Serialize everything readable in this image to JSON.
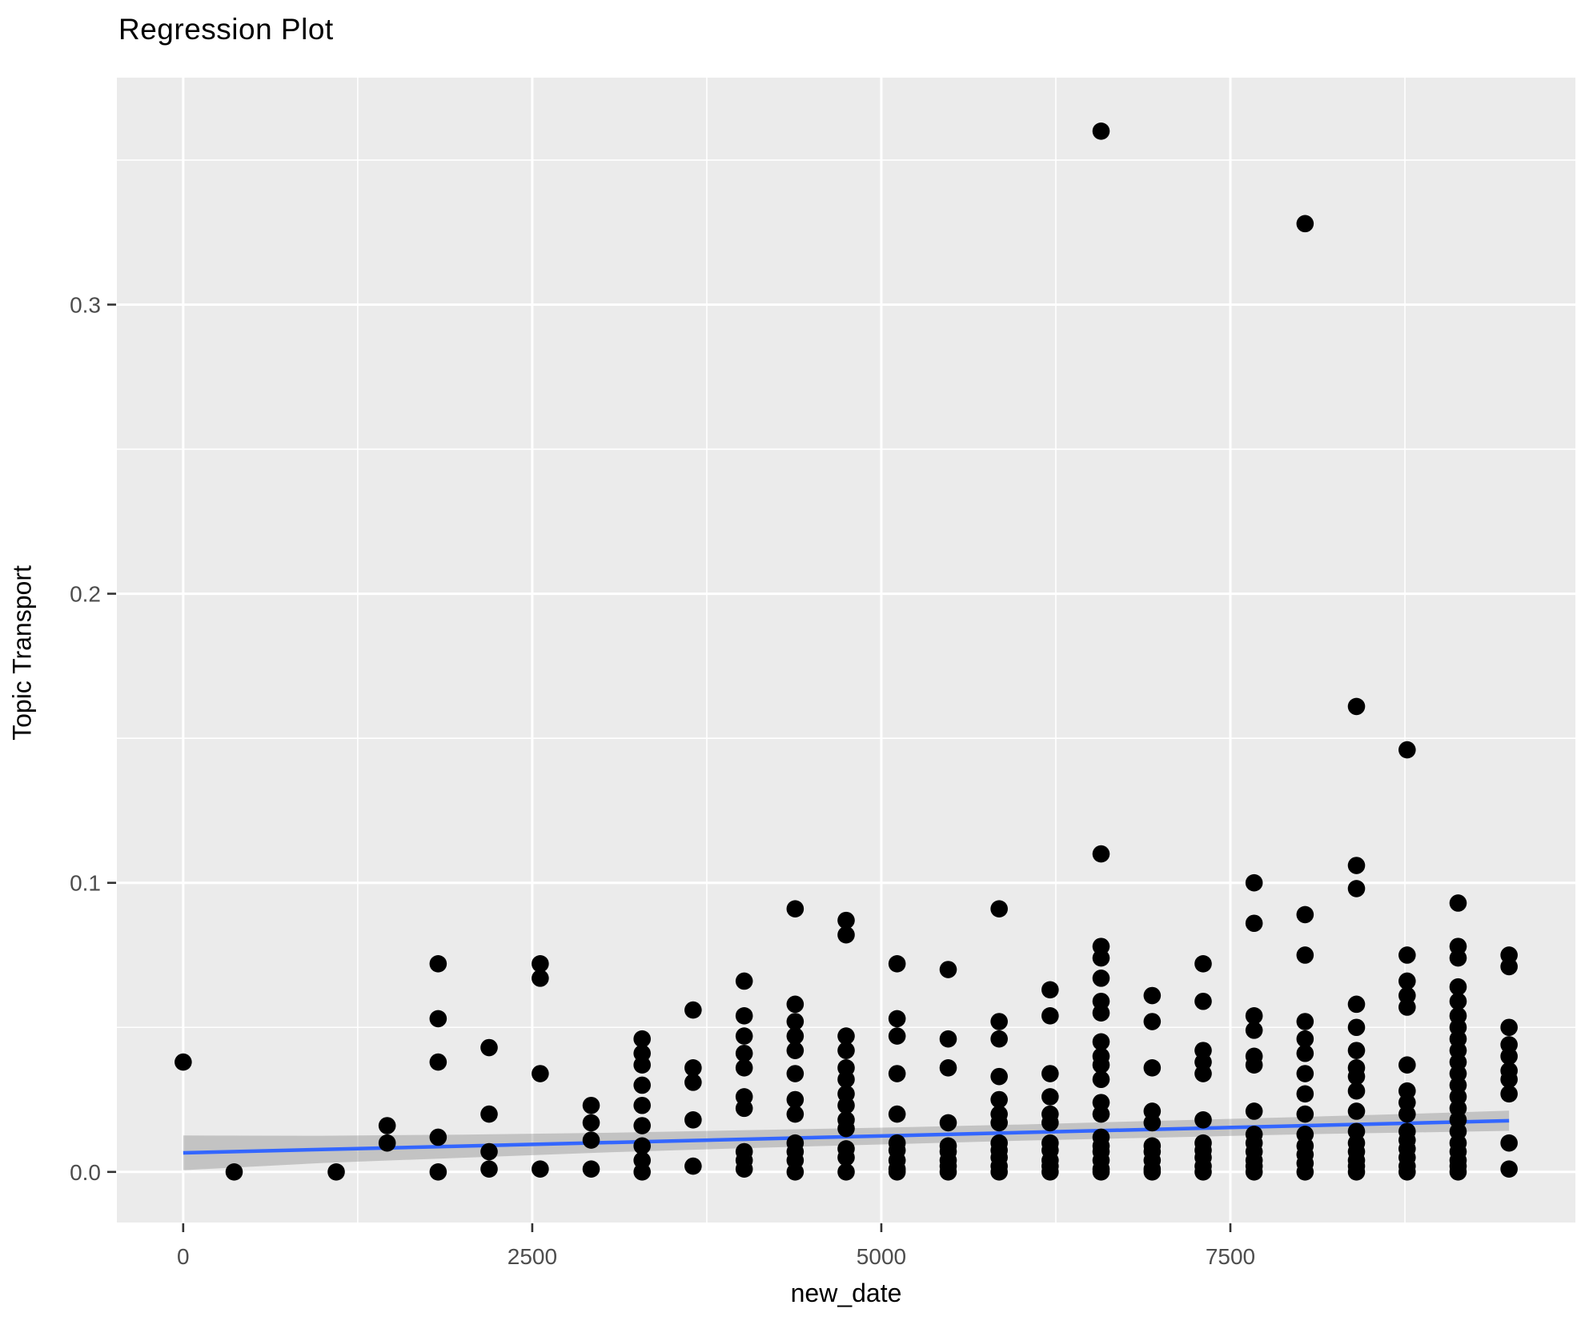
{
  "title": "Regression Plot",
  "chart_data": {
    "type": "scatter",
    "title": "Regression Plot",
    "xlabel": "new_date",
    "ylabel": "Topic Transport",
    "xlim": [
      -475,
      9971
    ],
    "ylim": [
      -0.0175,
      0.3785
    ],
    "grid": true,
    "legend_position": "none",
    "x_tick_values": [
      0,
      2500,
      5000,
      7500
    ],
    "x_tick_labels": [
      "0",
      "2500",
      "5000",
      "7500"
    ],
    "y_tick_values": [
      0.0,
      0.1,
      0.2,
      0.3
    ],
    "y_tick_labels": [
      "0.0",
      "0.1",
      "0.2",
      "0.3"
    ],
    "x_minor_gridlines": [
      1250,
      3750,
      6250,
      8750
    ],
    "y_minor_gridlines": [
      0.05,
      0.15,
      0.25,
      0.35
    ],
    "point_columns": [
      {
        "x": 0,
        "values": [
          0.038
        ]
      },
      {
        "x": 365,
        "values": [
          0.0
        ]
      },
      {
        "x": 1096,
        "values": [
          0.0
        ]
      },
      {
        "x": 1461,
        "values": [
          0.016,
          0.01
        ]
      },
      {
        "x": 1826,
        "values": [
          0.072,
          0.053,
          0.038,
          0.012,
          0.0
        ]
      },
      {
        "x": 2191,
        "values": [
          0.043,
          0.02,
          0.007,
          0.001
        ]
      },
      {
        "x": 2557,
        "values": [
          0.072,
          0.067,
          0.034,
          0.001
        ]
      },
      {
        "x": 2922,
        "values": [
          0.023,
          0.017,
          0.011,
          0.001
        ]
      },
      {
        "x": 3287,
        "values": [
          0.046,
          0.041,
          0.037,
          0.03,
          0.023,
          0.016,
          0.009,
          0.004,
          0.0
        ]
      },
      {
        "x": 3652,
        "values": [
          0.056,
          0.036,
          0.031,
          0.018,
          0.002
        ]
      },
      {
        "x": 4018,
        "values": [
          0.066,
          0.054,
          0.047,
          0.041,
          0.036,
          0.026,
          0.022,
          0.007,
          0.004,
          0.001
        ]
      },
      {
        "x": 4383,
        "values": [
          0.091,
          0.058,
          0.052,
          0.047,
          0.042,
          0.034,
          0.025,
          0.02,
          0.01,
          0.007,
          0.004,
          0.0
        ]
      },
      {
        "x": 4748,
        "values": [
          0.087,
          0.082,
          0.047,
          0.042,
          0.036,
          0.032,
          0.027,
          0.023,
          0.018,
          0.015,
          0.008,
          0.005,
          0.0
        ]
      },
      {
        "x": 5113,
        "values": [
          0.072,
          0.053,
          0.047,
          0.034,
          0.02,
          0.01,
          0.0075,
          0.004,
          0.001,
          0.0
        ]
      },
      {
        "x": 5479,
        "values": [
          0.07,
          0.046,
          0.036,
          0.017,
          0.009,
          0.007,
          0.004,
          0.002,
          0.0
        ]
      },
      {
        "x": 5844,
        "values": [
          0.091,
          0.052,
          0.046,
          0.033,
          0.025,
          0.02,
          0.017,
          0.01,
          0.0075,
          0.005,
          0.002,
          0.0
        ]
      },
      {
        "x": 6209,
        "values": [
          0.063,
          0.054,
          0.034,
          0.026,
          0.02,
          0.017,
          0.01,
          0.0075,
          0.004,
          0.002,
          0.0
        ]
      },
      {
        "x": 6574,
        "values": [
          0.36,
          0.11,
          0.078,
          0.074,
          0.067,
          0.059,
          0.055,
          0.045,
          0.04,
          0.037,
          0.032,
          0.024,
          0.02,
          0.012,
          0.009,
          0.007,
          0.004,
          0.001,
          0.0
        ]
      },
      {
        "x": 6940,
        "values": [
          0.061,
          0.052,
          0.036,
          0.021,
          0.017,
          0.009,
          0.007,
          0.004,
          0.001,
          0.0
        ]
      },
      {
        "x": 7305,
        "values": [
          0.072,
          0.059,
          0.042,
          0.038,
          0.034,
          0.018,
          0.01,
          0.0075,
          0.005,
          0.002,
          0.0
        ]
      },
      {
        "x": 7670,
        "values": [
          0.1,
          0.086,
          0.054,
          0.049,
          0.04,
          0.037,
          0.021,
          0.013,
          0.01,
          0.007,
          0.004,
          0.002,
          0.0
        ]
      },
      {
        "x": 8035,
        "values": [
          0.328,
          0.089,
          0.075,
          0.052,
          0.046,
          0.041,
          0.034,
          0.027,
          0.02,
          0.013,
          0.009,
          0.006,
          0.003,
          0.0
        ]
      },
      {
        "x": 8403,
        "values": [
          0.161,
          0.106,
          0.098,
          0.058,
          0.05,
          0.042,
          0.036,
          0.033,
          0.028,
          0.021,
          0.014,
          0.01,
          0.007,
          0.004,
          0.002,
          0.0
        ]
      },
      {
        "x": 8766,
        "values": [
          0.146,
          0.075,
          0.066,
          0.061,
          0.057,
          0.037,
          0.028,
          0.024,
          0.02,
          0.014,
          0.011,
          0.008,
          0.005,
          0.002,
          0.0
        ]
      },
      {
        "x": 9131,
        "values": [
          0.093,
          0.078,
          0.074,
          0.064,
          0.059,
          0.054,
          0.05,
          0.046,
          0.042,
          0.038,
          0.034,
          0.03,
          0.026,
          0.022,
          0.018,
          0.014,
          0.01,
          0.007,
          0.004,
          0.002,
          0.0
        ]
      },
      {
        "x": 9496,
        "values": [
          0.075,
          0.071,
          0.05,
          0.044,
          0.04,
          0.035,
          0.032,
          0.027,
          0.01,
          0.001
        ]
      }
    ],
    "regression_line": {
      "x0": 0,
      "y0": 0.0066,
      "x1": 9496,
      "y1": 0.0177
    },
    "confidence_band": [
      {
        "x": 0,
        "lo": 0.0006,
        "hi": 0.0126
      },
      {
        "x": 1000,
        "lo": 0.0031,
        "hi": 0.0125
      },
      {
        "x": 2000,
        "lo": 0.0049,
        "hi": 0.0129
      },
      {
        "x": 3000,
        "lo": 0.0067,
        "hi": 0.0135
      },
      {
        "x": 4000,
        "lo": 0.0082,
        "hi": 0.0144
      },
      {
        "x": 5000,
        "lo": 0.0095,
        "hi": 0.0153
      },
      {
        "x": 6000,
        "lo": 0.0108,
        "hi": 0.0164
      },
      {
        "x": 7000,
        "lo": 0.0119,
        "hi": 0.0177
      },
      {
        "x": 8000,
        "lo": 0.013,
        "hi": 0.019
      },
      {
        "x": 9000,
        "lo": 0.0138,
        "hi": 0.0204
      },
      {
        "x": 9496,
        "lo": 0.0142,
        "hi": 0.0212
      }
    ],
    "colors": {
      "panel_background": "#EBEBEB",
      "gridline": "#FFFFFF",
      "point": "#000000",
      "regression_line": "#3366FF",
      "confidence_band": "rgba(120,120,120,0.35)",
      "tick_text": "#4D4D4D",
      "tick_mark": "#333333",
      "title_text": "#000000"
    }
  }
}
